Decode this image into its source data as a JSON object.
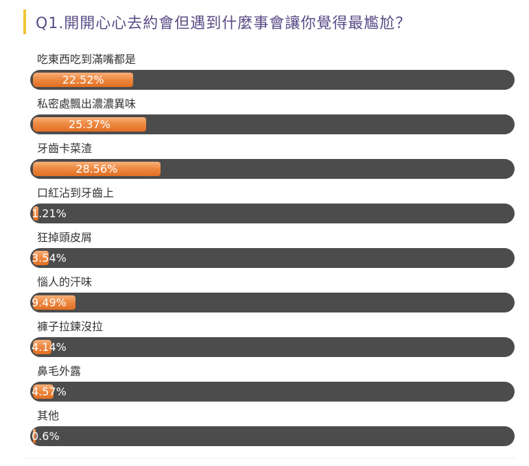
{
  "question": {
    "title": "Q1.開開心心去約會但遇到什麼事會讓你覺得最尷尬？"
  },
  "colors": {
    "accent_bar": "#f0c63a",
    "title": "#5a4c86",
    "track": "#4c4c4c",
    "fill": "#ee8a43"
  },
  "chart_data": {
    "type": "bar",
    "orientation": "horizontal",
    "title": "Q1.開開心心去約會但遇到什麼事會讓你覺得最尷尬？",
    "xlim": [
      0,
      100
    ],
    "unit": "%",
    "categories": [
      "吃東西吃到滿嘴都是",
      "私密處飄出濃濃異味",
      "牙齒卡菜渣",
      "口紅沾到牙齒上",
      "狂掉頭皮屑",
      "惱人的汗味",
      "褲子拉鍊沒拉",
      "鼻毛外露",
      "其他"
    ],
    "values": [
      22.52,
      25.37,
      28.56,
      1.21,
      3.54,
      9.49,
      4.14,
      4.57,
      0.6
    ],
    "value_labels": [
      "22.52%",
      "25.37%",
      "28.56%",
      "1.21%",
      "3.54%",
      "9.49%",
      "4.14%",
      "4.57%",
      "0.6%"
    ]
  }
}
